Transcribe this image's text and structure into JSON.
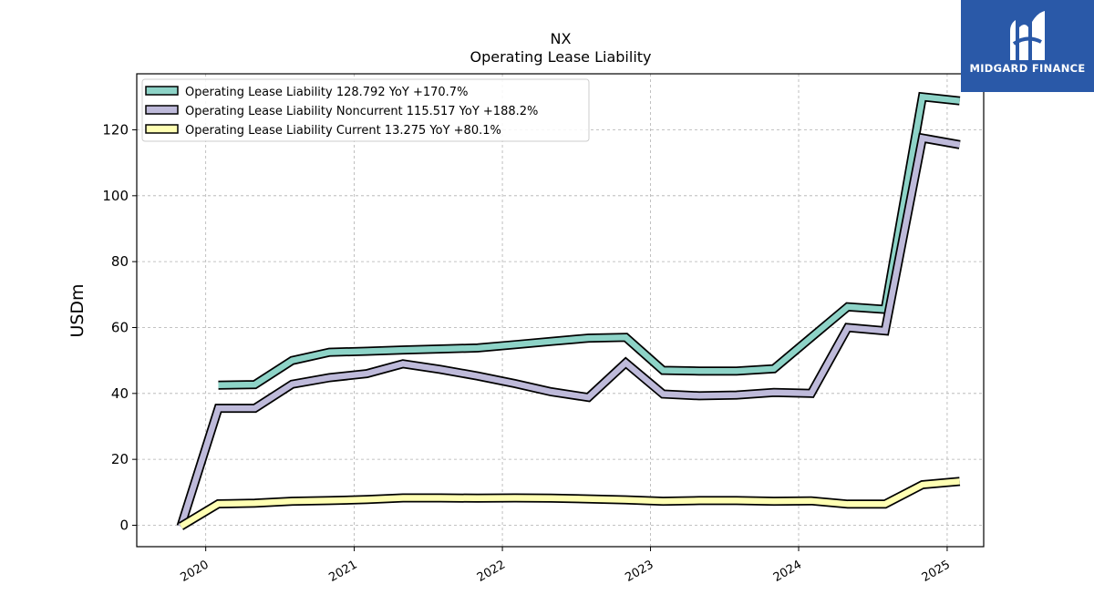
{
  "logo": {
    "text": "MIDGARD FINANCE",
    "icon": "midgard-logo-icon",
    "color": "#2a59a8"
  },
  "chart_data": {
    "type": "line",
    "title": "NX",
    "subtitle": "Operating Lease Liability",
    "xlabel": "",
    "ylabel": "USDm",
    "ylim": [
      -6.5,
      137
    ],
    "yticks": [
      0,
      20,
      40,
      60,
      80,
      100,
      120
    ],
    "xticks": [
      "2020",
      "2021",
      "2022",
      "2023",
      "2024",
      "2025"
    ],
    "xlim": [
      "2019-07-15",
      "2025-04-01"
    ],
    "grid": true,
    "legend_position": "top-left",
    "series": [
      {
        "name": "Operating Lease Liability  128.792 YoY +170.7%",
        "color": "#8dd3c7",
        "x": [
          "2020-02-01",
          "2020-05-01",
          "2020-08-01",
          "2020-11-01",
          "2021-02-01",
          "2021-05-01",
          "2021-08-01",
          "2021-11-01",
          "2022-02-01",
          "2022-05-01",
          "2022-08-01",
          "2022-11-01",
          "2023-02-01",
          "2023-05-01",
          "2023-08-01",
          "2023-11-01",
          "2024-02-01",
          "2024-05-01",
          "2024-08-01",
          "2024-11-01",
          "2025-02-01"
        ],
        "y": [
          42.5,
          42.7,
          50.0,
          52.5,
          52.8,
          53.2,
          53.5,
          53.8,
          54.8,
          55.8,
          56.8,
          57.0,
          47.0,
          46.8,
          46.8,
          47.5,
          57.0,
          66.3,
          65.5,
          130.0,
          128.8
        ]
      },
      {
        "name": "Operating Lease Liability Noncurrent  115.517 YoY +188.2%",
        "color": "#bebada",
        "x": [
          "2019-11-01",
          "2020-02-01",
          "2020-05-01",
          "2020-08-01",
          "2020-11-01",
          "2021-02-01",
          "2021-05-01",
          "2021-08-01",
          "2021-11-01",
          "2022-02-01",
          "2022-05-01",
          "2022-08-01",
          "2022-11-01",
          "2023-02-01",
          "2023-05-01",
          "2023-08-01",
          "2023-11-01",
          "2024-02-01",
          "2024-05-01",
          "2024-08-01",
          "2024-11-01",
          "2025-02-01"
        ],
        "y": [
          -0.3,
          35.5,
          35.5,
          42.8,
          44.8,
          46.0,
          49.0,
          47.3,
          45.3,
          43.0,
          40.5,
          38.8,
          49.3,
          39.8,
          39.3,
          39.5,
          40.3,
          40.0,
          60.0,
          59.0,
          117.5,
          115.5
        ]
      },
      {
        "name": "Operating Lease Liability Current  13.275 YoY +80.1%",
        "color": "#ffffb3",
        "x": [
          "2019-11-01",
          "2020-02-01",
          "2020-05-01",
          "2020-08-01",
          "2020-11-01",
          "2021-02-01",
          "2021-05-01",
          "2021-08-01",
          "2021-11-01",
          "2022-02-01",
          "2022-05-01",
          "2022-08-01",
          "2022-11-01",
          "2023-02-01",
          "2023-05-01",
          "2023-08-01",
          "2023-11-01",
          "2024-02-01",
          "2024-05-01",
          "2024-08-01",
          "2024-11-01",
          "2025-02-01"
        ],
        "y": [
          -0.3,
          6.5,
          6.7,
          7.3,
          7.5,
          7.8,
          8.3,
          8.3,
          8.2,
          8.3,
          8.2,
          8.0,
          7.7,
          7.3,
          7.5,
          7.5,
          7.3,
          7.4,
          6.4,
          6.4,
          12.3,
          13.3
        ]
      }
    ]
  }
}
